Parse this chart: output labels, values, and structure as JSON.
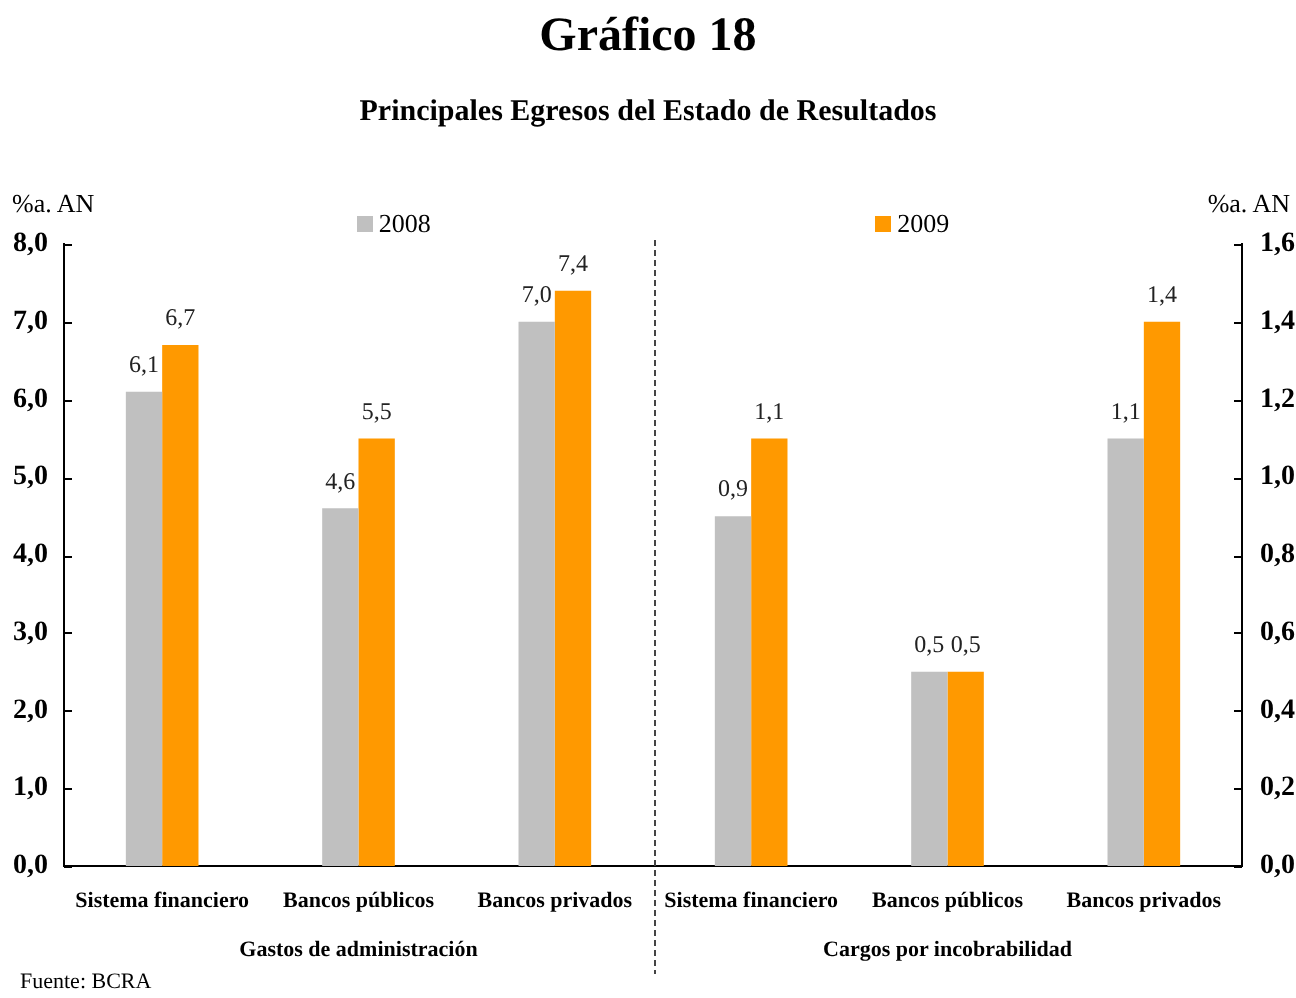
{
  "chart_data": {
    "type": "bar",
    "title": "Gráfico 18",
    "subtitle": "Principales Egresos del Estado de Resultados",
    "ylabel": "%a. AN",
    "y2label": "%a. AN",
    "categories": [
      "Sistema financiero",
      "Bancos públicos",
      "Bancos privados",
      "Sistema financiero",
      "Bancos públicos",
      "Bancos privados"
    ],
    "series": [
      {
        "name": "2008",
        "color": "#c0c0c0",
        "values": [
          6.1,
          4.6,
          7.0,
          null,
          null,
          null
        ],
        "value_labels": [
          "6,1",
          "4,6",
          "7,0",
          null,
          null,
          null
        ]
      },
      {
        "name": "2009",
        "color": "#ff9900",
        "values": [
          6.7,
          5.5,
          7.4,
          null,
          null,
          null
        ],
        "value_labels": [
          "6,7",
          "5,5",
          "7,4",
          null,
          null,
          null
        ]
      },
      {
        "color": "#c0c0c0",
        "axis": "y2",
        "values": [
          null,
          null,
          null,
          0.9,
          0.5,
          1.1
        ],
        "value_labels": [
          null,
          null,
          null,
          "0,9",
          "0,5",
          "1,1"
        ]
      },
      {
        "color": "#ff9900",
        "axis": "y2",
        "values": [
          null,
          null,
          null,
          1.1,
          0.5,
          1.4
        ],
        "value_labels": [
          null,
          null,
          null,
          "1,1",
          "0,5",
          "1,4"
        ]
      }
    ],
    "ylim": [
      0,
      8
    ],
    "yticks": [
      {
        "value": 0,
        "label": "0,0"
      },
      {
        "value": 1,
        "label": "1,0"
      },
      {
        "value": 2,
        "label": "2,0"
      },
      {
        "value": 3,
        "label": "3,0"
      },
      {
        "value": 4,
        "label": "4,0"
      },
      {
        "value": 5,
        "label": "5,0"
      },
      {
        "value": 6,
        "label": "6,0"
      },
      {
        "value": 7,
        "label": "7,0"
      },
      {
        "value": 8,
        "label": "8,0"
      }
    ],
    "y2lim": [
      0,
      1.6
    ],
    "y2ticks": [
      {
        "value": 0,
        "label": "0,0"
      },
      {
        "value": 0.2,
        "label": "0,2"
      },
      {
        "value": 0.4,
        "label": "0,4"
      },
      {
        "value": 0.6,
        "label": "0,6"
      },
      {
        "value": 0.8,
        "label": "0,8"
      },
      {
        "value": 1.0,
        "label": "1,0"
      },
      {
        "value": 1.2,
        "label": "1,2"
      },
      {
        "value": 1.4,
        "label": "1,4"
      },
      {
        "value": 1.6,
        "label": "1,6"
      }
    ],
    "grid": false,
    "legend": "top",
    "annotations": [
      "Gastos de administración",
      "Cargos por incobrabilidad",
      "Fuente: BCRA"
    ]
  }
}
